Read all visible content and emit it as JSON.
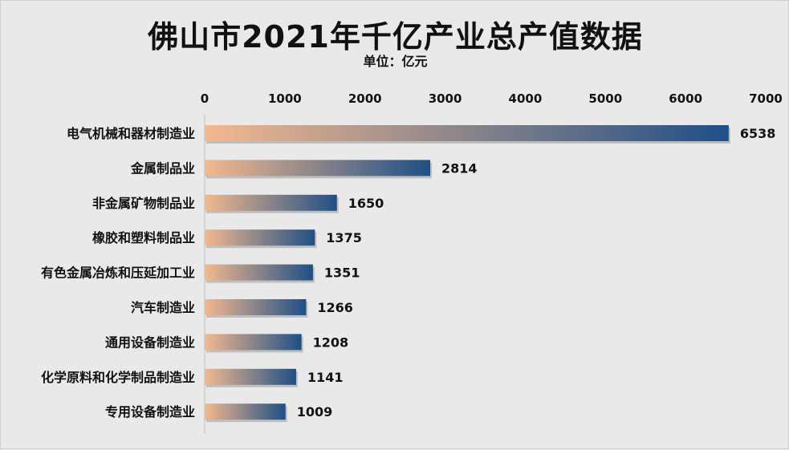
{
  "chart_data": {
    "type": "bar",
    "orientation": "horizontal",
    "title": "佛山市2021年千亿产业总产值数据",
    "subtitle": "单位：亿元",
    "categories": [
      "电气机械和器材制造业",
      "金属制品业",
      "非金属矿物制品业",
      "橡胶和塑料制品业",
      "有色金属冶炼和压延加工业",
      "汽车制造业",
      "通用设备制造业",
      "化学原料和化学制品制造业",
      "专用设备制造业"
    ],
    "values": [
      6538,
      2814,
      1650,
      1375,
      1351,
      1266,
      1208,
      1141,
      1009
    ],
    "xlim": [
      0,
      7000
    ],
    "x_ticks": [
      0,
      1000,
      2000,
      3000,
      4000,
      5000,
      6000,
      7000
    ],
    "xaxis_position": "top",
    "grid": false,
    "colors": {
      "bar_start": "#f3b98f",
      "bar_end": "#1f4f86",
      "text": "#111111"
    }
  }
}
